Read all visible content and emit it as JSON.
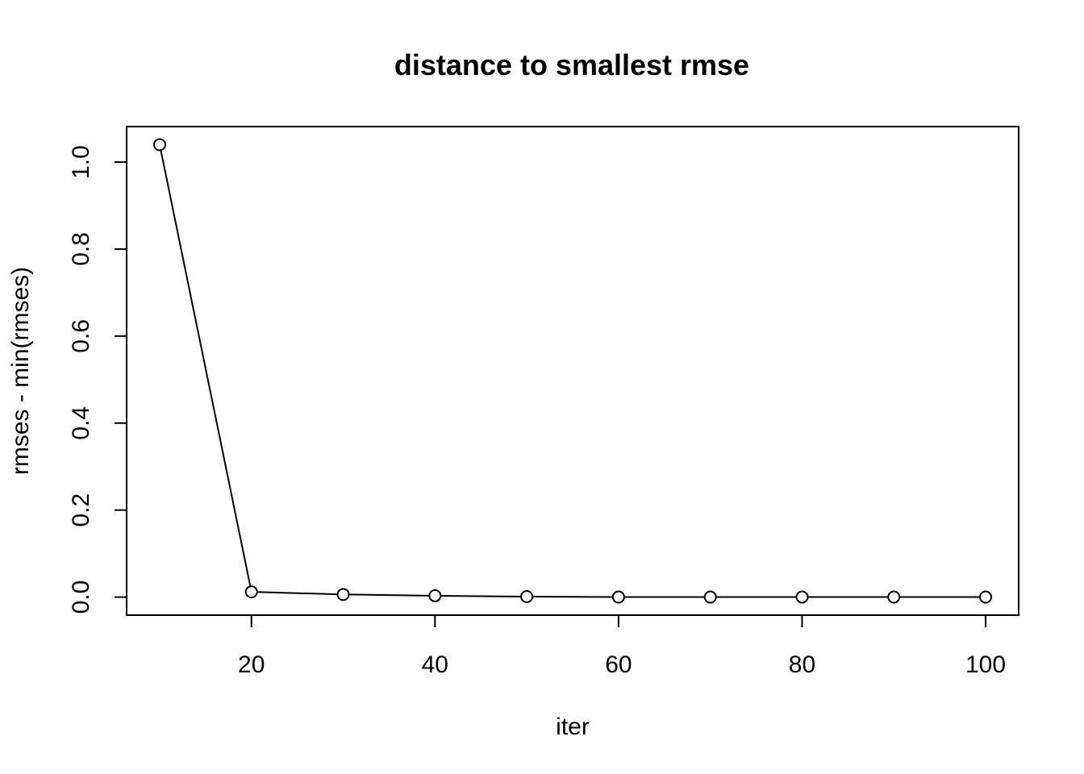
{
  "chart_data": {
    "type": "line",
    "title": "distance to smallest rmse",
    "xlabel": "iter",
    "ylabel": "rmses - min(rmses)",
    "x": [
      10,
      20,
      30,
      40,
      50,
      60,
      70,
      80,
      90,
      100
    ],
    "series": [
      {
        "values": [
          1.04,
          0.012,
          0.006,
          0.003,
          0.001,
          0.0,
          0.0,
          0.0,
          0.0,
          0.0
        ]
      }
    ],
    "x_ticks": [
      "20",
      "40",
      "60",
      "80",
      "100"
    ],
    "y_ticks": [
      "0.0",
      "0.2",
      "0.4",
      "0.6",
      "0.8",
      "1.0"
    ],
    "xlim": [
      6.4,
      103.6
    ],
    "ylim": [
      -0.0416,
      1.0816
    ],
    "grid": false,
    "marker": "open-circle",
    "line_color": "#000000"
  }
}
